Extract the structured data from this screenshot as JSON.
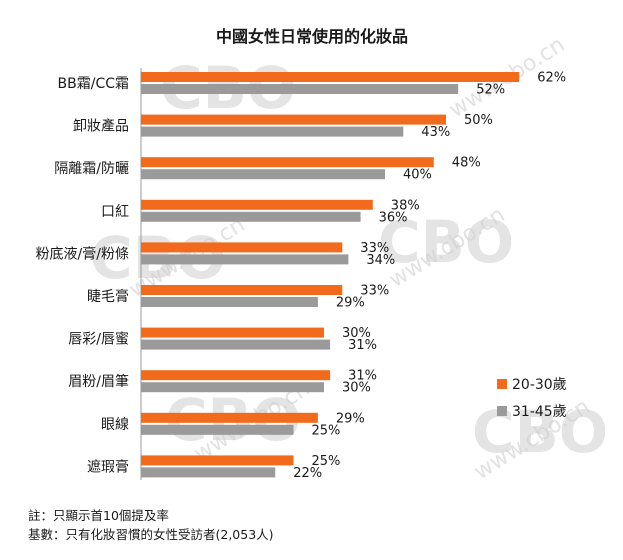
{
  "watermark": {
    "logo_text": "CBO",
    "url_text": "www.cbo.cn"
  },
  "notes": {
    "note": "註：只顯示首10個提及率",
    "base": "基數：只有化妝習慣的女性受訪者(2,053人)"
  },
  "chart_data": {
    "type": "bar",
    "orientation": "horizontal",
    "title": "中國女性日常使用的化妝品",
    "xlabel": "",
    "ylabel": "",
    "xlim": [
      0,
      70
    ],
    "grid": false,
    "legend_position": "bottom-right",
    "categories": [
      "BB霜/CC霜",
      "卸妝產品",
      "隔離霜/防曬",
      "口紅",
      "粉底液/膏/粉條",
      "睫毛膏",
      "唇彩/唇蜜",
      "眉粉/眉筆",
      "眼線",
      "遮瑕膏"
    ],
    "series": [
      {
        "name": "20-30歲",
        "color": "#f26b1d",
        "values": [
          62,
          50,
          48,
          38,
          33,
          33,
          30,
          31,
          29,
          25
        ],
        "labels": [
          "62%",
          "50%",
          "48%",
          "38%",
          "33%",
          "33%",
          "30%",
          "31%",
          "29%",
          "25%"
        ]
      },
      {
        "name": "31-45歲",
        "color": "#9a9a9a",
        "values": [
          52,
          43,
          40,
          36,
          34,
          29,
          31,
          30,
          25,
          22
        ],
        "labels": [
          "52%",
          "43%",
          "40%",
          "36%",
          "34%",
          "29%",
          "31%",
          "30%",
          "25%",
          "22%"
        ]
      }
    ]
  }
}
